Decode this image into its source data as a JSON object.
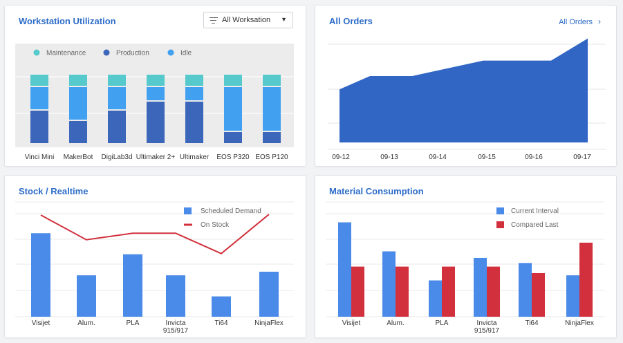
{
  "colors": {
    "title": "#2d6cc8",
    "maintenance": "#55c9cb",
    "production": "#3b66b9",
    "idle": "#42a0f0",
    "area": "#3166c4",
    "blue_bar": "#4a8ae8",
    "red": "#d1303c"
  },
  "utilization": {
    "title": "Workstation Utilization",
    "filter": {
      "selected": "All Worksation",
      "icon": "filter-lines-icon",
      "caret_icon": "caret-down-icon"
    },
    "chart_data": {
      "type": "bar",
      "stacked": true,
      "categories": [
        "Vinci Mini",
        "MakerBot",
        "DigiLab3d",
        "Ultimaker 2+",
        "Ultimaker",
        "EOS P320",
        "EOS P120"
      ],
      "series": [
        {
          "name": "Production",
          "values": [
            47,
            32,
            47,
            60,
            60,
            16,
            16
          ]
        },
        {
          "name": "Idle",
          "values": [
            32,
            47,
            32,
            19,
            19,
            63,
            63
          ]
        },
        {
          "name": "Maintenance",
          "values": [
            16,
            16,
            16,
            16,
            16,
            16,
            16
          ]
        }
      ],
      "legend": [
        "Maintenance",
        "Production",
        "Idle"
      ],
      "legend_position": "top-left",
      "grid": true
    }
  },
  "orders": {
    "title": "All Orders",
    "link_label": "All Orders",
    "link_icon": "chevron-right-icon",
    "chart_data": {
      "type": "area",
      "x": [
        "09-12",
        "09-13",
        "09-14",
        "09-15",
        "09-16",
        "09-17"
      ],
      "values": [
        72,
        90,
        90,
        111,
        111,
        141
      ],
      "ylim": [
        0,
        150
      ],
      "grid": true
    }
  },
  "stock": {
    "title": "Stock / Realtime",
    "chart_data": {
      "type": "bar",
      "categories": [
        "Visijet",
        "Alum.",
        "PLA",
        "Invicta 915/917",
        "Ti64",
        "NinjaFlex"
      ],
      "category_lines": [
        [
          "Visijet"
        ],
        [
          "Alum."
        ],
        [
          "PLA"
        ],
        [
          "Invicta",
          "915/917"
        ],
        [
          "Ti64"
        ],
        [
          "NinjaFlex"
        ]
      ],
      "series": [
        {
          "name": "Scheduled Demand",
          "type": "bar",
          "values": [
            115,
            57,
            86,
            57,
            28,
            62
          ]
        },
        {
          "name": "On Stock",
          "type": "line",
          "values": [
            140,
            106,
            115,
            115,
            87,
            141
          ]
        }
      ],
      "ylim": [
        0,
        160
      ],
      "legend_position": "top-right",
      "grid": true
    }
  },
  "material": {
    "title": "Material Consumption",
    "chart_data": {
      "type": "bar",
      "categories": [
        "Visijet",
        "Alum.",
        "PLA",
        "Invicta 915/917",
        "Ti64",
        "NinjaFlex"
      ],
      "category_lines": [
        [
          "Visijet"
        ],
        [
          "Alum."
        ],
        [
          "PLA"
        ],
        [
          "Invicta",
          "915/917"
        ],
        [
          "Ti64"
        ],
        [
          "NinjaFlex"
        ]
      ],
      "series": [
        {
          "name": "Current Interval",
          "values": [
            130,
            90,
            50,
            81,
            74,
            57
          ]
        },
        {
          "name": "Compared Last",
          "values": [
            69,
            69,
            69,
            69,
            60,
            102
          ]
        }
      ],
      "ylim": [
        0,
        160
      ],
      "legend_position": "top-right",
      "grid": true
    }
  }
}
